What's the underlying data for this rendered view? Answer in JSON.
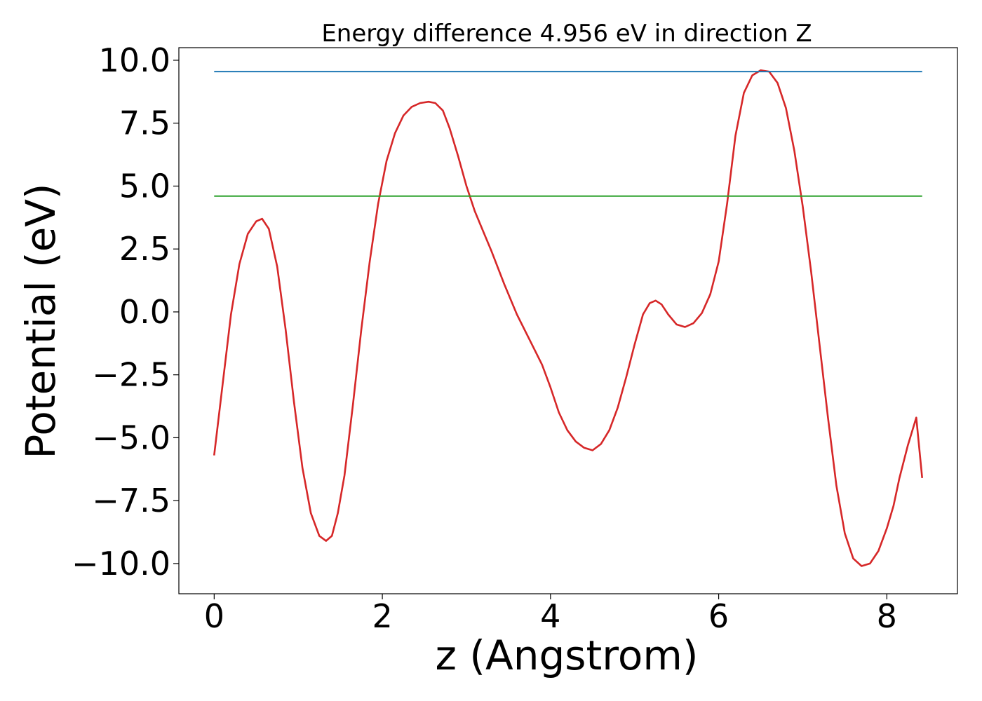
{
  "chart_data": {
    "type": "line",
    "title": "Energy difference 4.956 eV in direction Z",
    "xlabel": "z (Angstrom)",
    "ylabel": "Potential (eV)",
    "xlim": [
      -0.42,
      8.84
    ],
    "ylim": [
      -11.2,
      10.5
    ],
    "xticks": [
      0,
      2,
      4,
      6,
      8
    ],
    "xtick_labels": [
      "0",
      "2",
      "4",
      "6",
      "8"
    ],
    "yticks": [
      10,
      7.5,
      5,
      2.5,
      0,
      -2.5,
      -5,
      -7.5,
      -10
    ],
    "ytick_labels": [
      "10.0",
      "7.5",
      "5.0",
      "2.5",
      "0.0",
      "−2.5",
      "−5.0",
      "−7.5",
      "−10.0"
    ],
    "grid": false,
    "series": [
      {
        "color": "#d62728",
        "x": [
          0.0,
          0.1,
          0.2,
          0.3,
          0.4,
          0.5,
          0.57,
          0.65,
          0.75,
          0.85,
          0.95,
          1.05,
          1.15,
          1.25,
          1.33,
          1.4,
          1.47,
          1.55,
          1.65,
          1.75,
          1.85,
          1.95,
          2.05,
          2.15,
          2.25,
          2.35,
          2.45,
          2.55,
          2.63,
          2.72,
          2.8,
          2.9,
          3.0,
          3.1,
          3.2,
          3.3,
          3.45,
          3.6,
          3.75,
          3.9,
          4.0,
          4.1,
          4.2,
          4.3,
          4.4,
          4.5,
          4.6,
          4.7,
          4.8,
          4.9,
          5.0,
          5.1,
          5.18,
          5.25,
          5.32,
          5.4,
          5.5,
          5.6,
          5.7,
          5.8,
          5.9,
          6.0,
          6.1,
          6.2,
          6.3,
          6.4,
          6.5,
          6.6,
          6.7,
          6.8,
          6.9,
          7.0,
          7.1,
          7.2,
          7.3,
          7.4,
          7.5,
          7.6,
          7.7,
          7.8,
          7.9,
          8.0,
          8.08,
          8.15,
          8.25,
          8.35,
          8.42
        ],
        "values": [
          -5.7,
          -2.9,
          -0.1,
          1.9,
          3.1,
          3.6,
          3.7,
          3.3,
          1.8,
          -0.7,
          -3.6,
          -6.2,
          -8.0,
          -8.9,
          -9.1,
          -8.9,
          -8.0,
          -6.5,
          -3.7,
          -0.7,
          2.0,
          4.3,
          6.0,
          7.1,
          7.8,
          8.15,
          8.3,
          8.35,
          8.3,
          8.0,
          7.3,
          6.2,
          5.0,
          4.0,
          3.2,
          2.4,
          1.1,
          -0.1,
          -1.1,
          -2.1,
          -3.0,
          -4.0,
          -4.7,
          -5.15,
          -5.4,
          -5.5,
          -5.25,
          -4.7,
          -3.8,
          -2.6,
          -1.3,
          -0.1,
          0.35,
          0.45,
          0.3,
          -0.1,
          -0.5,
          -0.6,
          -0.45,
          -0.05,
          0.7,
          2.0,
          4.3,
          7.0,
          8.7,
          9.4,
          9.6,
          9.55,
          9.1,
          8.1,
          6.4,
          4.2,
          1.6,
          -1.3,
          -4.2,
          -6.9,
          -8.8,
          -9.8,
          -10.1,
          -10.0,
          -9.5,
          -8.6,
          -7.7,
          -6.6,
          -5.3,
          -4.2,
          -6.6
        ]
      },
      {
        "color": "#1f77b4",
        "x": [
          0.0,
          8.42
        ],
        "values": [
          9.55,
          9.55
        ]
      },
      {
        "color": "#2ca02c",
        "x": [
          0.0,
          8.42
        ],
        "values": [
          4.6,
          4.6
        ]
      }
    ]
  }
}
